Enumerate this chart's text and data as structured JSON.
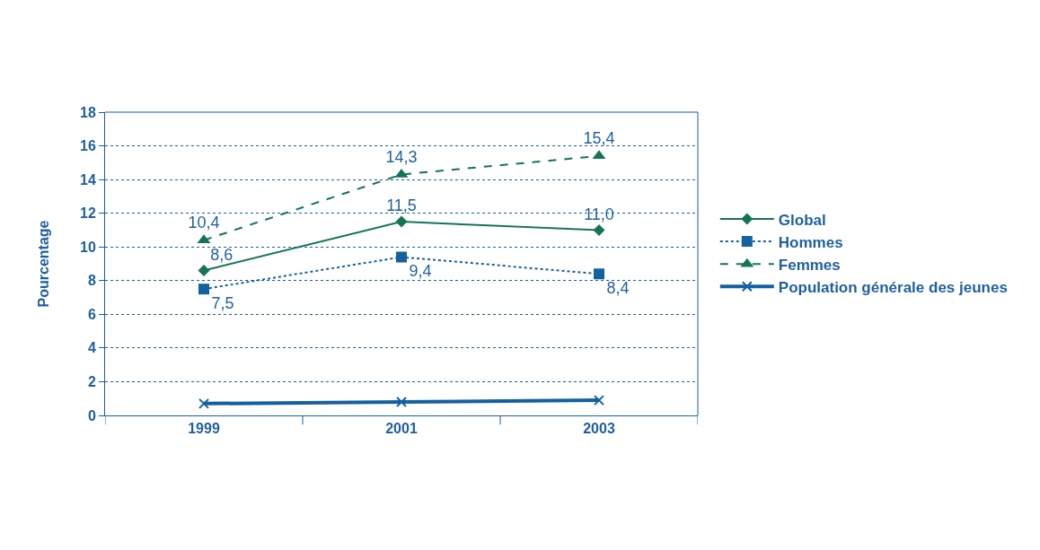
{
  "chart_data": {
    "type": "line",
    "ylabel": "Pourcentage",
    "categories": [
      "1999",
      "2001",
      "2003"
    ],
    "ylim": [
      0,
      18
    ],
    "yticks": [
      0,
      2,
      4,
      6,
      8,
      10,
      12,
      14,
      16,
      18
    ],
    "grid": "y",
    "legend": "right",
    "series": [
      {
        "name": "Global",
        "color": "#137556",
        "values": [
          8.6,
          11.5,
          11.0
        ],
        "value_labels": [
          "8,6",
          "11,5",
          "11,0"
        ],
        "marker": "diamond",
        "line_style": "solid"
      },
      {
        "name": "Hommes",
        "color": "#1461a0",
        "values": [
          7.5,
          9.4,
          8.4
        ],
        "value_labels": [
          "7,5",
          "9,4",
          "8,4"
        ],
        "marker": "square",
        "line_style": "dotted"
      },
      {
        "name": "Femmes",
        "color": "#137556",
        "values": [
          10.4,
          14.3,
          15.4
        ],
        "value_labels": [
          "10,4",
          "14,3",
          "15,4"
        ],
        "marker": "triangle",
        "line_style": "dashed"
      },
      {
        "name": "Population générale des jeunes",
        "color": "#1461a0",
        "values": [
          0.7,
          0.8,
          0.9
        ],
        "marker": "cross",
        "line_style": "solid"
      }
    ]
  }
}
